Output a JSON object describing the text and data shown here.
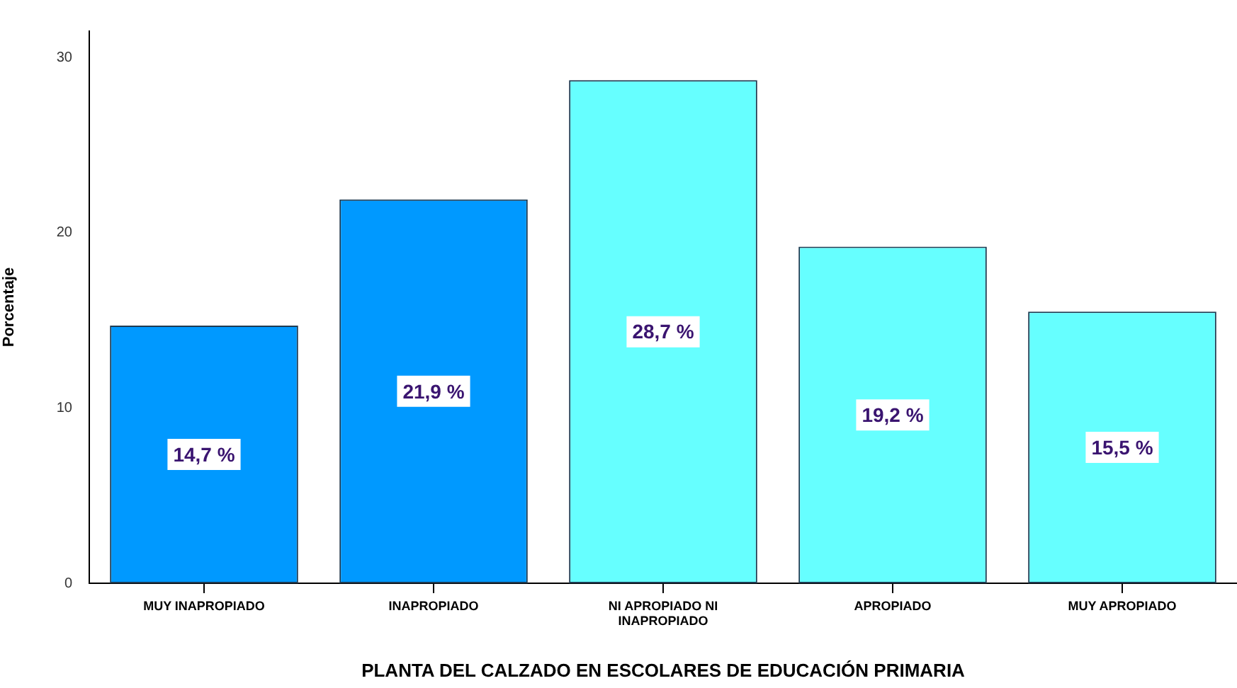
{
  "chart_data": {
    "type": "bar",
    "xlabel": "PLANTA DEL CALZADO EN ESCOLARES DE EDUCACIÓN PRIMARIA",
    "ylabel": "Porcentaje",
    "categories": [
      "MUY INAPROPIADO",
      "INAPROPIADO",
      "NI APROPIADO NI INAPROPIADO",
      "APROPIADO",
      "MUY APROPIADO"
    ],
    "values": [
      14.7,
      21.9,
      28.7,
      19.2,
      15.5
    ],
    "colors": [
      "#0099ff",
      "#0099ff",
      "#66ffff",
      "#66ffff",
      "#66ffff"
    ],
    "value_labels": [
      "14,7 %",
      "21,9 %",
      "28,7 %",
      "19,2 %",
      "15,5 %"
    ],
    "ylim": [
      0,
      31.5
    ],
    "yticks": [
      0,
      10,
      20,
      30
    ],
    "grid": false,
    "legend": false
  }
}
